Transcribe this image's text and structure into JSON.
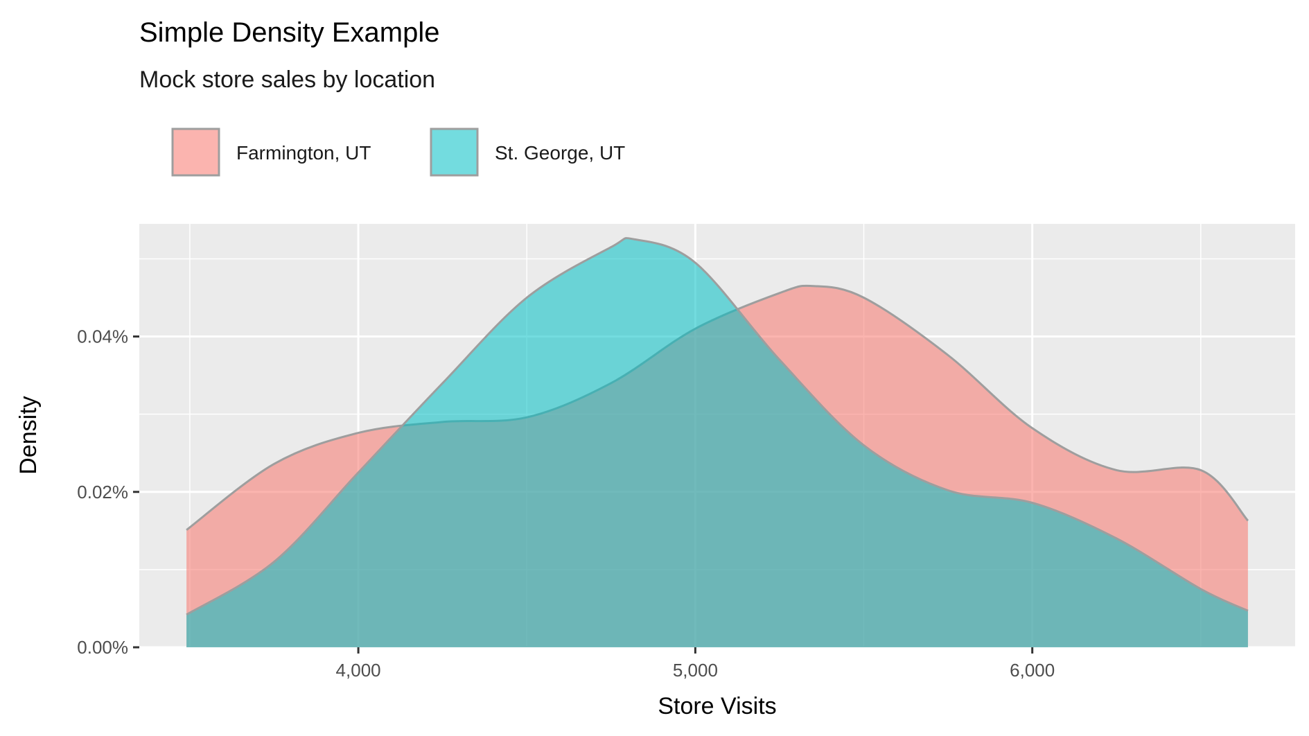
{
  "chart_data": {
    "type": "area",
    "title": "Simple Density Example",
    "subtitle": "Mock store sales by location",
    "xlabel": "Store Visits",
    "ylabel": "Density",
    "xlim": [
      3350,
      6780
    ],
    "ylim": [
      0,
      0.000545
    ],
    "x_ticks": [
      4000,
      5000,
      6000
    ],
    "x_tick_labels": [
      "4,000",
      "5,000",
      "6,000"
    ],
    "y_ticks": [
      0,
      0.0002,
      0.0004
    ],
    "y_tick_labels": [
      "0.00%",
      "0.02%",
      "0.04%"
    ],
    "grid": true,
    "legend_position": "top-left",
    "series": [
      {
        "name": "Farmington, UT",
        "color": "#F8766D",
        "x": [
          3490,
          3750,
          4000,
          4250,
          4500,
          4750,
          5000,
          5250,
          5350,
          5500,
          5750,
          6000,
          6250,
          6500,
          6640
        ],
        "y": [
          0.000151,
          0.000236,
          0.000276,
          0.00029,
          0.000296,
          0.00034,
          0.00041,
          0.000456,
          0.000465,
          0.00045,
          0.000376,
          0.000282,
          0.000228,
          0.000228,
          0.000163
        ]
      },
      {
        "name": "St. George, UT",
        "color": "#00BFC4",
        "x": [
          3490,
          3750,
          4000,
          4250,
          4500,
          4750,
          4820,
          5000,
          5250,
          5500,
          5750,
          6000,
          6250,
          6500,
          6640
        ],
        "y": [
          4.2e-05,
          0.00011,
          0.000225,
          0.00034,
          0.00045,
          0.000515,
          0.000525,
          0.000495,
          0.00037,
          0.00026,
          0.000202,
          0.000186,
          0.00014,
          7.5e-05,
          4.7e-05
        ]
      }
    ],
    "fill_alpha": 0.55
  }
}
